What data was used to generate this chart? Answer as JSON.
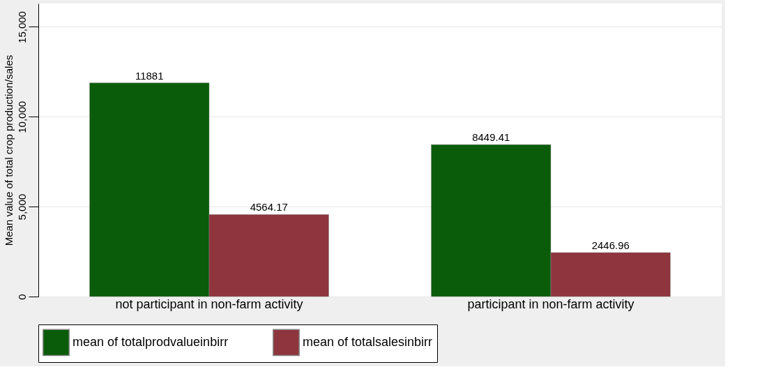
{
  "chart_data": {
    "type": "bar",
    "ylabel": "Mean value of total crop production/sales",
    "categories": [
      "not participant in non-farm activity",
      "participant in non-farm activity"
    ],
    "series": [
      {
        "name": "mean of totalprodvalueinbirr",
        "color": "#0a5c0a",
        "values": [
          11881,
          8449.41
        ]
      },
      {
        "name": "mean of totalsalesinbirr",
        "color": "#8e353e",
        "values": [
          4564.17,
          2446.96
        ]
      }
    ],
    "ylim": [
      0,
      16300
    ],
    "yticks": [
      {
        "value": 0,
        "label": "0"
      },
      {
        "value": 5000,
        "label": "5,000"
      },
      {
        "value": 10000,
        "label": "10,000"
      },
      {
        "value": 15000,
        "label": "15,000"
      }
    ],
    "grid": "y",
    "legend": "bottom",
    "data_labels": true
  }
}
